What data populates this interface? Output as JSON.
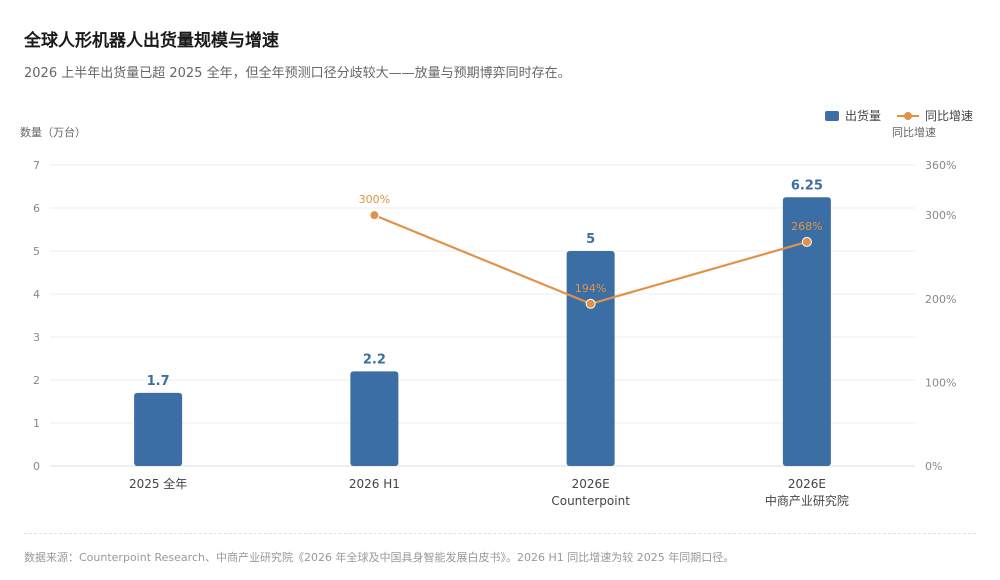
{
  "title": "全球人形机器人出货量规模与增速",
  "subtitle": "2026 上半年出货量已超 2025 全年，但全年预测口径分歧较大——放量与预期博弈同时存在。",
  "legend": {
    "bar_label": "出货量",
    "line_label": "同比增速"
  },
  "footer": "数据来源：Counterpoint Research、中商产业研究院《2026 年全球及中国具身智能发展白皮书》。2026 H1 同比增速为较 2025 年同期口径。",
  "colors": {
    "bar": "#3b6ea5",
    "line": "#e0924a",
    "grid": "#ececec",
    "axis_text": "#888888",
    "bar_label": "#3b6ea5"
  },
  "chart_data": {
    "type": "bar",
    "categories": [
      [
        "2025 全年"
      ],
      [
        "2026 H1"
      ],
      [
        "2026E",
        "Counterpoint"
      ],
      [
        "2026E",
        "中商产业研究院"
      ]
    ],
    "series": [
      {
        "name": "出货量",
        "type": "bar",
        "axis": "left",
        "values": [
          1.7,
          2.2,
          5,
          6.25
        ],
        "labels": [
          "1.7",
          "2.2",
          "5",
          "6.25"
        ]
      },
      {
        "name": "同比增速",
        "type": "line",
        "axis": "right",
        "values": [
          null,
          300,
          194,
          268
        ],
        "labels": [
          "",
          "300%",
          "194%",
          "268%"
        ]
      }
    ],
    "ylabel": "数量（万台）",
    "y2label": "同比增速",
    "ylim": [
      0,
      7
    ],
    "yticks": [
      "0",
      "1",
      "2",
      "3",
      "4",
      "5",
      "6",
      "7"
    ],
    "y2lim": [
      0,
      360
    ],
    "y2ticks": [
      {
        "value": 0,
        "label": "0%"
      },
      {
        "value": 100,
        "label": "100%"
      },
      {
        "value": 200,
        "label": "200%"
      },
      {
        "value": 300,
        "label": "300%"
      },
      {
        "value": 360,
        "label": "360%"
      }
    ],
    "grid": true,
    "legend_position": "top-right"
  }
}
